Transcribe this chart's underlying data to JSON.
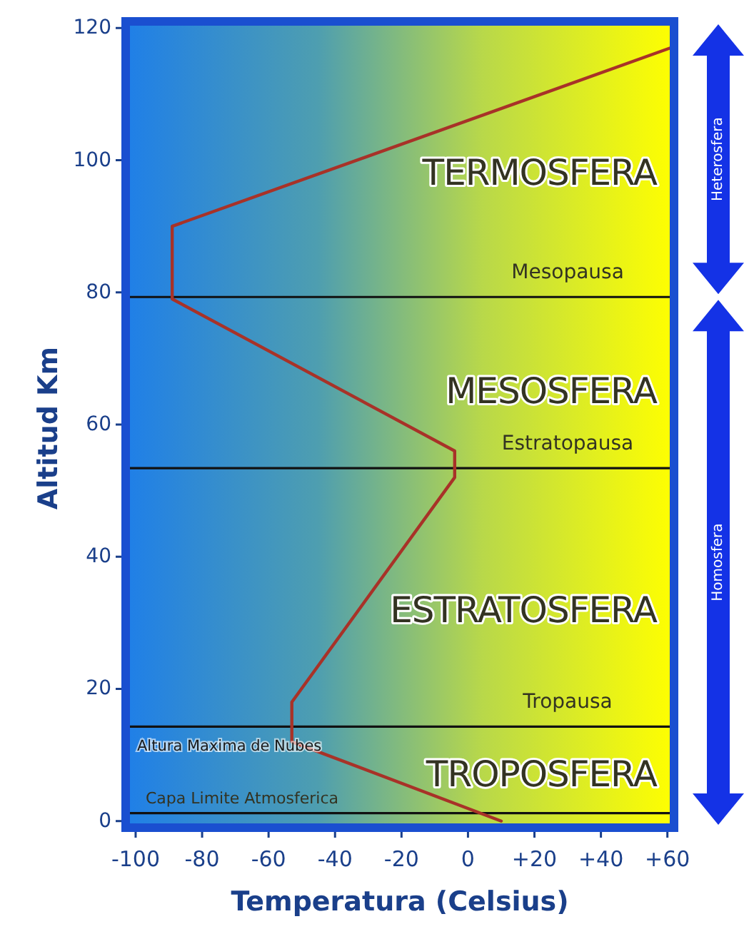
{
  "chart_data": {
    "type": "line",
    "xlabel": "Temperatura (Celsius)",
    "ylabel": "Altitud Km",
    "xlim": [
      -103,
      62
    ],
    "ylim": [
      -1,
      121
    ],
    "xticks": [
      -100,
      -80,
      -60,
      -40,
      -20,
      0,
      {
        "value": 20,
        "label": "+20"
      },
      {
        "value": 40,
        "label": "+40"
      },
      {
        "value": 60,
        "label": "+60"
      }
    ],
    "yticks": [
      0,
      20,
      40,
      60,
      80,
      100,
      120
    ],
    "grid": false,
    "marker": "none",
    "line_style": "solid",
    "series": [
      {
        "color": "#a83228",
        "x": [
          10,
          -53,
          -53,
          -4,
          -4,
          -89,
          -89,
          61
        ],
        "values": [
          0,
          12,
          18,
          52,
          56,
          79,
          90,
          117
        ]
      }
    ],
    "ref_lines": [
      {
        "axis": "y",
        "value": 79.3,
        "label": "Mesopausa",
        "color": "#111111"
      },
      {
        "axis": "y",
        "value": 53.4,
        "label": "Estratopausa",
        "color": "#111111"
      },
      {
        "axis": "y",
        "value": 14.3,
        "label": "Tropausa",
        "color": "#111111"
      },
      {
        "axis": "y",
        "value": 1.2,
        "label": "Capa Limite Atmosferica",
        "color": "#111111"
      }
    ],
    "annotations": [
      "TERMOSFERA",
      "MESOSFERA",
      "ESTRATOSFERA",
      "TROPOSFERA",
      "Altura Maxima de Nubes",
      "Heterosfera",
      "Homosfera"
    ]
  }
}
